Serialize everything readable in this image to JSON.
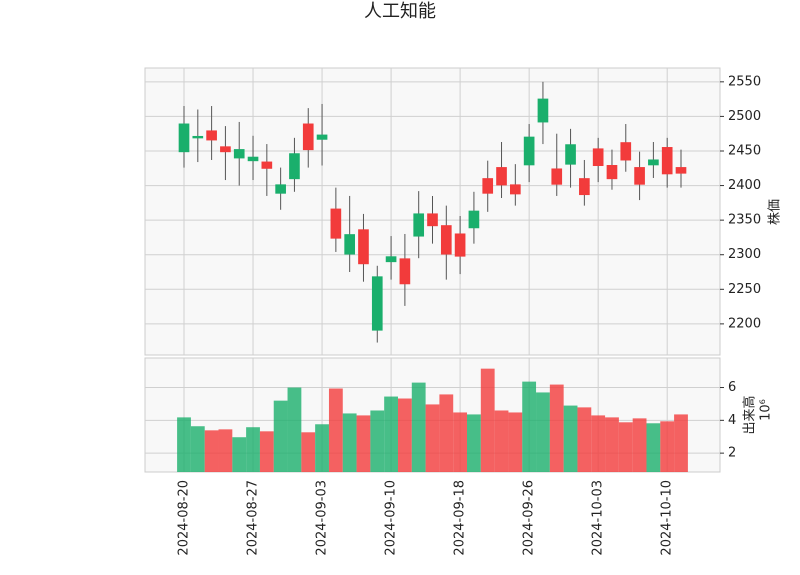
{
  "chart_data": {
    "type": "candlestick",
    "title": "人工知能",
    "categories": [
      "2024-08-20",
      null,
      null,
      null,
      null,
      "2024-08-27",
      null,
      null,
      null,
      null,
      "2024-09-03",
      null,
      null,
      null,
      null,
      "2024-09-10",
      null,
      null,
      null,
      null,
      "2024-09-18",
      null,
      null,
      null,
      null,
      "2024-09-26",
      null,
      null,
      null,
      null,
      "2024-10-03",
      null,
      null,
      null,
      null,
      "2024-10-10",
      null
    ],
    "open": [
      2449,
      2469,
      2479,
      2456,
      2440,
      2436,
      2434,
      2389,
      2410,
      2489,
      2467,
      2366,
      2301,
      2336,
      2191,
      2290,
      2294,
      2327,
      2359,
      2342,
      2330,
      2339,
      2410,
      2426,
      2401,
      2430,
      2492,
      2424,
      2431,
      2410,
      2453,
      2429,
      2462,
      2426,
      2430,
      2455,
      2426
    ],
    "high": [
      2515,
      2510,
      2515,
      2486,
      2492,
      2472,
      2460,
      2426,
      2469,
      2512,
      2518,
      2397,
      2385,
      2359,
      2284,
      2327,
      2330,
      2392,
      2385,
      2371,
      2356,
      2391,
      2436,
      2463,
      2431,
      2489,
      2550,
      2475,
      2482,
      2437,
      2469,
      2452,
      2489,
      2449,
      2463,
      2469,
      2452
    ],
    "low": [
      2426,
      2434,
      2437,
      2408,
      2400,
      2408,
      2385,
      2365,
      2391,
      2426,
      2429,
      2304,
      2275,
      2261,
      2173,
      2264,
      2226,
      2295,
      2316,
      2264,
      2272,
      2316,
      2362,
      2382,
      2371,
      2405,
      2460,
      2385,
      2397,
      2371,
      2405,
      2394,
      2420,
      2379,
      2411,
      2397,
      2397
    ],
    "close": [
      2489,
      2471,
      2466,
      2449,
      2452,
      2441,
      2425,
      2401,
      2446,
      2452,
      2473,
      2324,
      2329,
      2287,
      2268,
      2297,
      2258,
      2359,
      2342,
      2301,
      2298,
      2363,
      2389,
      2401,
      2388,
      2470,
      2525,
      2402,
      2459,
      2387,
      2429,
      2410,
      2437,
      2402,
      2437,
      2417,
      2418
    ],
    "up_color": "#1aaf6c",
    "down_color": "#f23b3b",
    "ylim": [
      2155,
      2570
    ],
    "yticks": [
      2200,
      2250,
      2300,
      2350,
      2400,
      2450,
      2500,
      2550
    ],
    "ylabel": "株価",
    "grid": true,
    "volume": {
      "values": [
        4.18,
        3.64,
        3.39,
        3.45,
        2.97,
        3.58,
        3.33,
        5.2,
        6.0,
        3.27,
        3.76,
        5.94,
        4.42,
        4.3,
        4.6,
        5.45,
        5.33,
        6.3,
        4.97,
        5.58,
        4.48,
        4.36,
        7.15,
        4.6,
        4.48,
        6.36,
        5.7,
        6.18,
        4.9,
        4.79,
        4.3,
        4.18,
        3.88,
        4.12,
        3.82,
        3.94,
        4.36
      ],
      "ylim": [
        0.85,
        7.8
      ],
      "yticks": [
        2,
        4,
        6
      ],
      "ylabel": "出来高",
      "multiplier": "10⁶"
    }
  }
}
